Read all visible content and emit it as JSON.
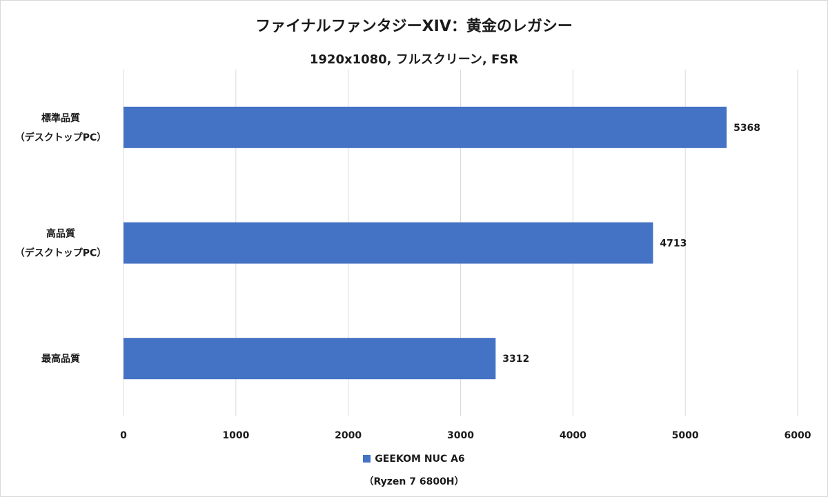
{
  "chart_data": {
    "type": "bar",
    "orientation": "horizontal",
    "title": "ファイナルファンタジーXIV：黄金のレガシー",
    "subtitle": "1920x1080, フルスクリーン, FSR",
    "categories": [
      [
        "標準品質",
        "（デスクトップPC）"
      ],
      [
        "高品質",
        "（デスクトップPC）"
      ],
      [
        "最高品質"
      ]
    ],
    "series": [
      {
        "name": "GEEKOM NUC A6 （Ryzen 7 6800H）",
        "legend_lines": [
          "GEEKOM NUC A6",
          "（Ryzen 7 6800H）"
        ],
        "values": [
          5368,
          4713,
          3312
        ],
        "color": "#4472c4"
      }
    ],
    "xlim": [
      0,
      6000
    ],
    "xticks": [
      0,
      1000,
      2000,
      3000,
      4000,
      5000,
      6000
    ],
    "grid": true,
    "legend_position": "bottom",
    "data_labels": true
  }
}
